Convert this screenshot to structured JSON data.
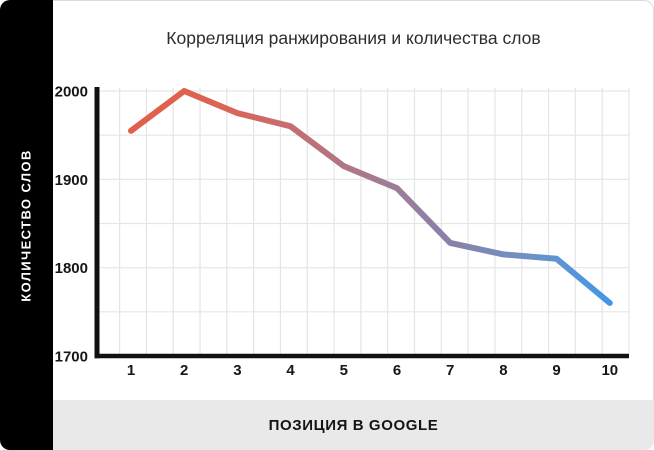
{
  "title_bar": {
    "title": "Корреляция ранжирования и количества слов"
  },
  "y_axis_panel": {
    "label": "КОЛИЧЕСТВО СЛОВ"
  },
  "x_axis_panel": {
    "label": "ПОЗИЦИЯ В GOOGLE"
  },
  "colors": {
    "sidebar_bg": "#000000",
    "footer_bg": "#e9e9e9",
    "grid": "#e5e5e5",
    "axis": "#111111",
    "line_gradient": [
      "#e0604a",
      "#dd6350",
      "#c56d70",
      "#a67a90",
      "#8981a9",
      "#6d92c5",
      "#4397e8"
    ]
  },
  "chart_data": {
    "type": "line",
    "title": "Корреляция ранжирования и количества слов",
    "xlabel": "ПОЗИЦИЯ В GOOGLE",
    "ylabel": "КОЛИЧЕСТВО СЛОВ",
    "x": [
      1,
      2,
      3,
      4,
      5,
      6,
      7,
      8,
      9,
      10
    ],
    "values": [
      1955,
      2000,
      1975,
      1960,
      1915,
      1890,
      1828,
      1815,
      1810,
      1760
    ],
    "xticks": [
      "1",
      "2",
      "3",
      "4",
      "5",
      "6",
      "7",
      "8",
      "9",
      "10"
    ],
    "yticks": [
      1700,
      1800,
      1900,
      2000
    ],
    "ylim": [
      1700,
      2000
    ],
    "grid": true,
    "legend": false,
    "line_width": 6
  }
}
